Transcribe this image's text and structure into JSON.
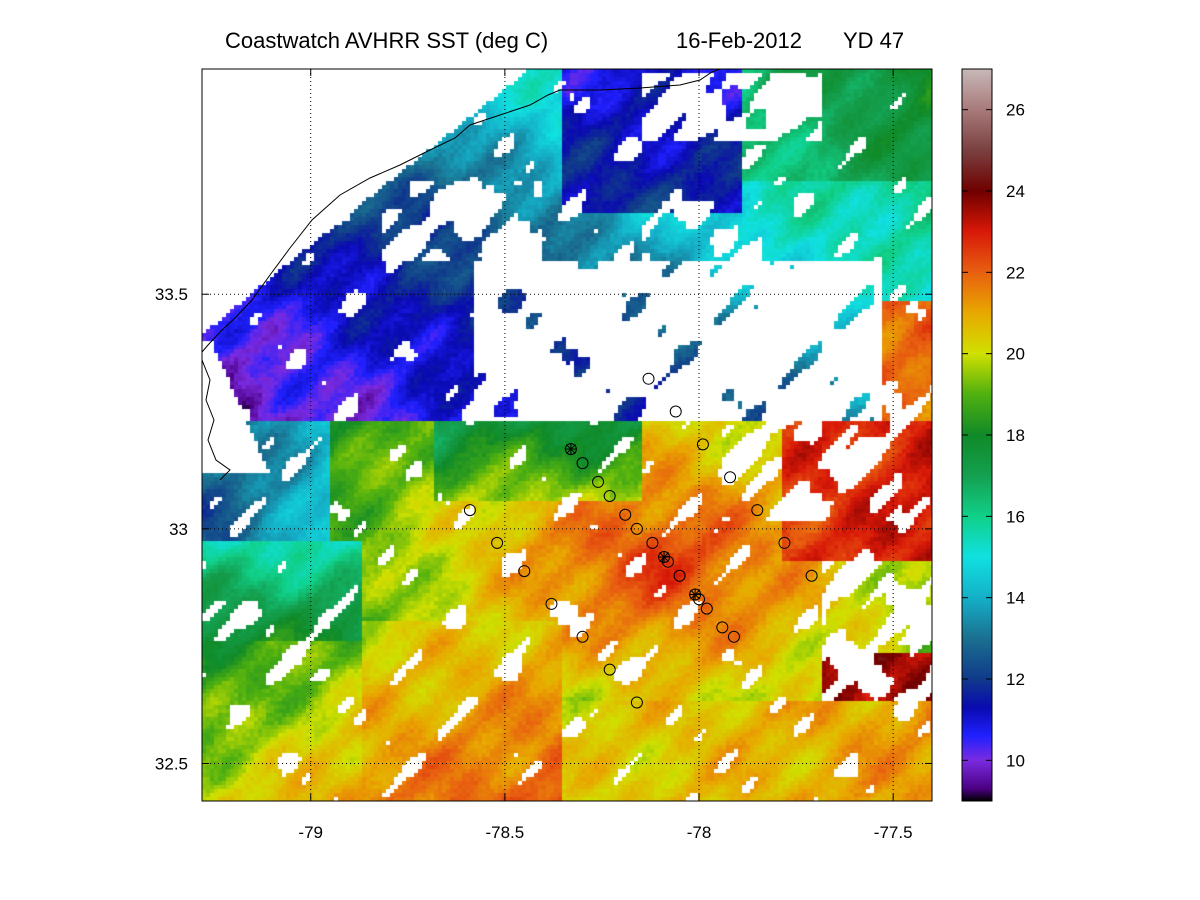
{
  "title": {
    "main": "Coastwatch   AVHRR   SST  (deg C)",
    "date": "16-Feb-2012",
    "yearday": "YD 47"
  },
  "chart_data": {
    "type": "heatmap",
    "variable": "SST",
    "units": "deg C",
    "x_ticks": [
      {
        "value": -79,
        "label": "-79"
      },
      {
        "value": -78.5,
        "label": "-78.5"
      },
      {
        "value": -78,
        "label": "-78"
      },
      {
        "value": -77.5,
        "label": "-77.5"
      }
    ],
    "y_ticks": [
      {
        "value": 33.5,
        "label": "33.5"
      },
      {
        "value": 33,
        "label": "33"
      },
      {
        "value": 32.5,
        "label": "32.5"
      }
    ],
    "xlim": [
      -79.28,
      -77.4
    ],
    "ylim": [
      32.42,
      33.98
    ],
    "grid": true,
    "colorbar": {
      "range": [
        9,
        27
      ],
      "ticks": [
        {
          "value": 10,
          "label": "10"
        },
        {
          "value": 12,
          "label": "12"
        },
        {
          "value": 14,
          "label": "14"
        },
        {
          "value": 16,
          "label": "16"
        },
        {
          "value": 18,
          "label": "18"
        },
        {
          "value": 20,
          "label": "20"
        },
        {
          "value": 22,
          "label": "22"
        },
        {
          "value": 24,
          "label": "24"
        },
        {
          "value": 26,
          "label": "26"
        }
      ],
      "stops": [
        {
          "v": 9.0,
          "c": "#000000"
        },
        {
          "v": 9.3,
          "c": "#4b0082"
        },
        {
          "v": 10.0,
          "c": "#7a2be0"
        },
        {
          "v": 10.6,
          "c": "#2020ff"
        },
        {
          "v": 11.3,
          "c": "#0a0ab0"
        },
        {
          "v": 12.0,
          "c": "#103a8a"
        },
        {
          "v": 13.0,
          "c": "#1a7090"
        },
        {
          "v": 14.0,
          "c": "#14b0c8"
        },
        {
          "v": 15.0,
          "c": "#10e0e0"
        },
        {
          "v": 16.0,
          "c": "#10d088"
        },
        {
          "v": 17.0,
          "c": "#14a050"
        },
        {
          "v": 18.0,
          "c": "#108a28"
        },
        {
          "v": 19.0,
          "c": "#50b010"
        },
        {
          "v": 20.0,
          "c": "#d0e000"
        },
        {
          "v": 21.0,
          "c": "#e8a800"
        },
        {
          "v": 22.0,
          "c": "#e86010"
        },
        {
          "v": 23.0,
          "c": "#d81808"
        },
        {
          "v": 24.0,
          "c": "#700000"
        },
        {
          "v": 25.0,
          "c": "#7a4040"
        },
        {
          "v": 26.0,
          "c": "#a87a7a"
        },
        {
          "v": 27.0,
          "c": "#c8b8b8"
        }
      ]
    },
    "stations": [
      {
        "lon": -78.13,
        "lat": 33.32,
        "star": false
      },
      {
        "lon": -78.06,
        "lat": 33.25,
        "star": false
      },
      {
        "lon": -77.99,
        "lat": 33.18,
        "star": false
      },
      {
        "lon": -78.33,
        "lat": 33.17,
        "star": true
      },
      {
        "lon": -78.3,
        "lat": 33.14,
        "star": false
      },
      {
        "lon": -78.26,
        "lat": 33.1,
        "star": false
      },
      {
        "lon": -77.92,
        "lat": 33.11,
        "star": false
      },
      {
        "lon": -78.23,
        "lat": 33.07,
        "star": false
      },
      {
        "lon": -78.19,
        "lat": 33.03,
        "star": false
      },
      {
        "lon": -77.85,
        "lat": 33.04,
        "star": false
      },
      {
        "lon": -78.16,
        "lat": 33.0,
        "star": false
      },
      {
        "lon": -78.12,
        "lat": 32.97,
        "star": false
      },
      {
        "lon": -78.09,
        "lat": 32.94,
        "star": true
      },
      {
        "lon": -78.08,
        "lat": 32.93,
        "star": false
      },
      {
        "lon": -77.78,
        "lat": 32.97,
        "star": false
      },
      {
        "lon": -78.05,
        "lat": 32.9,
        "star": false
      },
      {
        "lon": -77.71,
        "lat": 32.9,
        "star": false
      },
      {
        "lon": -78.01,
        "lat": 32.86,
        "star": true
      },
      {
        "lon": -78.0,
        "lat": 32.85,
        "star": false
      },
      {
        "lon": -77.98,
        "lat": 32.83,
        "star": false
      },
      {
        "lon": -77.94,
        "lat": 32.79,
        "star": false
      },
      {
        "lon": -77.91,
        "lat": 32.77,
        "star": false
      },
      {
        "lon": -78.59,
        "lat": 33.04,
        "star": false
      },
      {
        "lon": -78.52,
        "lat": 32.97,
        "star": false
      },
      {
        "lon": -78.45,
        "lat": 32.91,
        "star": false
      },
      {
        "lon": -78.38,
        "lat": 32.84,
        "star": false
      },
      {
        "lon": -78.3,
        "lat": 32.77,
        "star": false
      },
      {
        "lon": -78.23,
        "lat": 32.7,
        "star": false
      },
      {
        "lon": -78.16,
        "lat": 32.63,
        "star": false
      }
    ]
  }
}
